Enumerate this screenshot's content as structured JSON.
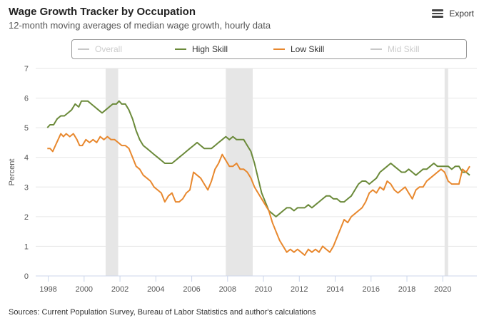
{
  "header": {
    "title": "Wage Growth Tracker by Occupation",
    "subtitle": "12-month moving averages of median wage growth, hourly data"
  },
  "export": {
    "label": "Export",
    "icon": "hamburger-menu-icon"
  },
  "footer": {
    "source": "Sources: Current Population Survey, Bureau of Labor Statistics and author's calculations"
  },
  "chart_data": {
    "type": "line",
    "title": "Wage Growth Tracker by Occupation",
    "subtitle": "12-month moving averages of median wage growth, hourly data",
    "xlabel": "",
    "ylabel": "Percent",
    "xlim": [
      1997.3,
      2021.9
    ],
    "ylim": [
      0,
      7
    ],
    "y_ticks": [
      0,
      1,
      2,
      3,
      4,
      5,
      6,
      7
    ],
    "x_ticks": [
      1998,
      2000,
      2002,
      2004,
      2006,
      2008,
      2010,
      2012,
      2014,
      2016,
      2018,
      2020
    ],
    "grid": "horizontal",
    "legend_position": "top",
    "recessions": [
      [
        2001.2,
        2001.9
      ],
      [
        2007.9,
        2009.4
      ],
      [
        2020.1,
        2020.3
      ]
    ],
    "series": [
      {
        "name": "Overall",
        "color": "#c8c8c8",
        "visible": false,
        "points": []
      },
      {
        "name": "High Skill",
        "color": "#6b8a3a",
        "visible": true,
        "points": [
          [
            1997.95,
            5.0
          ],
          [
            1998.1,
            5.1
          ],
          [
            1998.3,
            5.1
          ],
          [
            1998.5,
            5.3
          ],
          [
            1998.7,
            5.4
          ],
          [
            1998.9,
            5.4
          ],
          [
            1999.1,
            5.5
          ],
          [
            1999.3,
            5.6
          ],
          [
            1999.5,
            5.8
          ],
          [
            1999.7,
            5.7
          ],
          [
            1999.85,
            5.9
          ],
          [
            2000.0,
            5.9
          ],
          [
            2000.2,
            5.9
          ],
          [
            2000.4,
            5.8
          ],
          [
            2000.6,
            5.7
          ],
          [
            2000.8,
            5.6
          ],
          [
            2001.0,
            5.5
          ],
          [
            2001.2,
            5.6
          ],
          [
            2001.4,
            5.7
          ],
          [
            2001.6,
            5.8
          ],
          [
            2001.8,
            5.8
          ],
          [
            2001.95,
            5.9
          ],
          [
            2002.1,
            5.8
          ],
          [
            2002.3,
            5.8
          ],
          [
            2002.5,
            5.6
          ],
          [
            2002.7,
            5.3
          ],
          [
            2002.9,
            4.9
          ],
          [
            2003.1,
            4.6
          ],
          [
            2003.3,
            4.4
          ],
          [
            2003.5,
            4.3
          ],
          [
            2003.7,
            4.2
          ],
          [
            2003.9,
            4.1
          ],
          [
            2004.1,
            4.0
          ],
          [
            2004.3,
            3.9
          ],
          [
            2004.5,
            3.8
          ],
          [
            2004.7,
            3.8
          ],
          [
            2004.9,
            3.8
          ],
          [
            2005.1,
            3.9
          ],
          [
            2005.3,
            4.0
          ],
          [
            2005.5,
            4.1
          ],
          [
            2005.7,
            4.2
          ],
          [
            2005.9,
            4.3
          ],
          [
            2006.1,
            4.4
          ],
          [
            2006.3,
            4.5
          ],
          [
            2006.5,
            4.4
          ],
          [
            2006.7,
            4.3
          ],
          [
            2006.9,
            4.3
          ],
          [
            2007.1,
            4.3
          ],
          [
            2007.3,
            4.4
          ],
          [
            2007.5,
            4.5
          ],
          [
            2007.7,
            4.6
          ],
          [
            2007.9,
            4.7
          ],
          [
            2008.1,
            4.6
          ],
          [
            2008.3,
            4.7
          ],
          [
            2008.5,
            4.6
          ],
          [
            2008.7,
            4.6
          ],
          [
            2008.9,
            4.6
          ],
          [
            2009.1,
            4.4
          ],
          [
            2009.3,
            4.2
          ],
          [
            2009.5,
            3.8
          ],
          [
            2009.7,
            3.3
          ],
          [
            2009.9,
            2.8
          ],
          [
            2010.1,
            2.5
          ],
          [
            2010.3,
            2.2
          ],
          [
            2010.5,
            2.1
          ],
          [
            2010.7,
            2.0
          ],
          [
            2010.9,
            2.1
          ],
          [
            2011.1,
            2.2
          ],
          [
            2011.3,
            2.3
          ],
          [
            2011.5,
            2.3
          ],
          [
            2011.7,
            2.2
          ],
          [
            2011.9,
            2.3
          ],
          [
            2012.1,
            2.3
          ],
          [
            2012.3,
            2.3
          ],
          [
            2012.5,
            2.4
          ],
          [
            2012.7,
            2.3
          ],
          [
            2012.9,
            2.4
          ],
          [
            2013.1,
            2.5
          ],
          [
            2013.3,
            2.6
          ],
          [
            2013.5,
            2.7
          ],
          [
            2013.7,
            2.7
          ],
          [
            2013.9,
            2.6
          ],
          [
            2014.1,
            2.6
          ],
          [
            2014.3,
            2.5
          ],
          [
            2014.5,
            2.5
          ],
          [
            2014.7,
            2.6
          ],
          [
            2014.9,
            2.7
          ],
          [
            2015.1,
            2.9
          ],
          [
            2015.3,
            3.1
          ],
          [
            2015.5,
            3.2
          ],
          [
            2015.7,
            3.2
          ],
          [
            2015.9,
            3.1
          ],
          [
            2016.1,
            3.2
          ],
          [
            2016.3,
            3.3
          ],
          [
            2016.5,
            3.5
          ],
          [
            2016.7,
            3.6
          ],
          [
            2016.9,
            3.7
          ],
          [
            2017.1,
            3.8
          ],
          [
            2017.3,
            3.7
          ],
          [
            2017.5,
            3.6
          ],
          [
            2017.7,
            3.5
          ],
          [
            2017.9,
            3.5
          ],
          [
            2018.1,
            3.6
          ],
          [
            2018.3,
            3.5
          ],
          [
            2018.5,
            3.4
          ],
          [
            2018.7,
            3.5
          ],
          [
            2018.9,
            3.6
          ],
          [
            2019.1,
            3.6
          ],
          [
            2019.3,
            3.7
          ],
          [
            2019.5,
            3.8
          ],
          [
            2019.7,
            3.7
          ],
          [
            2019.9,
            3.7
          ],
          [
            2020.1,
            3.7
          ],
          [
            2020.3,
            3.7
          ],
          [
            2020.5,
            3.6
          ],
          [
            2020.7,
            3.7
          ],
          [
            2020.9,
            3.7
          ],
          [
            2021.1,
            3.5
          ],
          [
            2021.3,
            3.5
          ],
          [
            2021.5,
            3.4
          ]
        ]
      },
      {
        "name": "Low Skill",
        "color": "#e8882e",
        "visible": true,
        "points": [
          [
            1997.95,
            4.3
          ],
          [
            1998.1,
            4.3
          ],
          [
            1998.25,
            4.2
          ],
          [
            1998.4,
            4.4
          ],
          [
            1998.55,
            4.6
          ],
          [
            1998.7,
            4.8
          ],
          [
            1998.85,
            4.7
          ],
          [
            1999.0,
            4.8
          ],
          [
            1999.2,
            4.7
          ],
          [
            1999.4,
            4.8
          ],
          [
            1999.6,
            4.6
          ],
          [
            1999.75,
            4.4
          ],
          [
            1999.9,
            4.4
          ],
          [
            2000.1,
            4.6
          ],
          [
            2000.3,
            4.5
          ],
          [
            2000.5,
            4.6
          ],
          [
            2000.7,
            4.5
          ],
          [
            2000.9,
            4.7
          ],
          [
            2001.1,
            4.6
          ],
          [
            2001.3,
            4.7
          ],
          [
            2001.5,
            4.6
          ],
          [
            2001.7,
            4.6
          ],
          [
            2001.9,
            4.5
          ],
          [
            2002.1,
            4.4
          ],
          [
            2002.3,
            4.4
          ],
          [
            2002.5,
            4.3
          ],
          [
            2002.7,
            4.0
          ],
          [
            2002.9,
            3.7
          ],
          [
            2003.1,
            3.6
          ],
          [
            2003.3,
            3.4
          ],
          [
            2003.5,
            3.3
          ],
          [
            2003.7,
            3.2
          ],
          [
            2003.9,
            3.0
          ],
          [
            2004.1,
            2.9
          ],
          [
            2004.3,
            2.8
          ],
          [
            2004.5,
            2.5
          ],
          [
            2004.7,
            2.7
          ],
          [
            2004.9,
            2.8
          ],
          [
            2005.1,
            2.5
          ],
          [
            2005.3,
            2.5
          ],
          [
            2005.5,
            2.6
          ],
          [
            2005.7,
            2.8
          ],
          [
            2005.9,
            2.9
          ],
          [
            2006.1,
            3.5
          ],
          [
            2006.3,
            3.4
          ],
          [
            2006.5,
            3.3
          ],
          [
            2006.7,
            3.1
          ],
          [
            2006.9,
            2.9
          ],
          [
            2007.1,
            3.2
          ],
          [
            2007.3,
            3.6
          ],
          [
            2007.5,
            3.8
          ],
          [
            2007.7,
            4.1
          ],
          [
            2007.9,
            3.9
          ],
          [
            2008.1,
            3.7
          ],
          [
            2008.3,
            3.7
          ],
          [
            2008.5,
            3.8
          ],
          [
            2008.7,
            3.6
          ],
          [
            2008.9,
            3.6
          ],
          [
            2009.1,
            3.5
          ],
          [
            2009.3,
            3.3
          ],
          [
            2009.5,
            3.0
          ],
          [
            2009.7,
            2.8
          ],
          [
            2009.9,
            2.6
          ],
          [
            2010.1,
            2.4
          ],
          [
            2010.3,
            2.2
          ],
          [
            2010.5,
            1.8
          ],
          [
            2010.7,
            1.5
          ],
          [
            2010.9,
            1.2
          ],
          [
            2011.1,
            1.0
          ],
          [
            2011.3,
            0.8
          ],
          [
            2011.5,
            0.9
          ],
          [
            2011.7,
            0.8
          ],
          [
            2011.9,
            0.9
          ],
          [
            2012.1,
            0.8
          ],
          [
            2012.3,
            0.7
          ],
          [
            2012.5,
            0.9
          ],
          [
            2012.7,
            0.8
          ],
          [
            2012.9,
            0.9
          ],
          [
            2013.1,
            0.8
          ],
          [
            2013.3,
            1.0
          ],
          [
            2013.5,
            0.9
          ],
          [
            2013.7,
            0.8
          ],
          [
            2013.9,
            1.0
          ],
          [
            2014.1,
            1.3
          ],
          [
            2014.3,
            1.6
          ],
          [
            2014.5,
            1.9
          ],
          [
            2014.7,
            1.8
          ],
          [
            2014.9,
            2.0
          ],
          [
            2015.1,
            2.1
          ],
          [
            2015.3,
            2.2
          ],
          [
            2015.5,
            2.3
          ],
          [
            2015.7,
            2.5
          ],
          [
            2015.9,
            2.8
          ],
          [
            2016.1,
            2.9
          ],
          [
            2016.3,
            2.8
          ],
          [
            2016.5,
            3.0
          ],
          [
            2016.7,
            2.9
          ],
          [
            2016.9,
            3.2
          ],
          [
            2017.1,
            3.1
          ],
          [
            2017.3,
            2.9
          ],
          [
            2017.5,
            2.8
          ],
          [
            2017.7,
            2.9
          ],
          [
            2017.9,
            3.0
          ],
          [
            2018.1,
            2.8
          ],
          [
            2018.3,
            2.6
          ],
          [
            2018.5,
            2.9
          ],
          [
            2018.7,
            3.0
          ],
          [
            2018.9,
            3.0
          ],
          [
            2019.1,
            3.2
          ],
          [
            2019.3,
            3.3
          ],
          [
            2019.5,
            3.4
          ],
          [
            2019.7,
            3.5
          ],
          [
            2019.9,
            3.6
          ],
          [
            2020.1,
            3.5
          ],
          [
            2020.3,
            3.2
          ],
          [
            2020.5,
            3.1
          ],
          [
            2020.7,
            3.1
          ],
          [
            2020.9,
            3.1
          ],
          [
            2021.1,
            3.6
          ],
          [
            2021.3,
            3.5
          ],
          [
            2021.5,
            3.7
          ]
        ]
      },
      {
        "name": "Mid Skill",
        "color": "#c8c8c8",
        "visible": false,
        "points": []
      }
    ]
  }
}
